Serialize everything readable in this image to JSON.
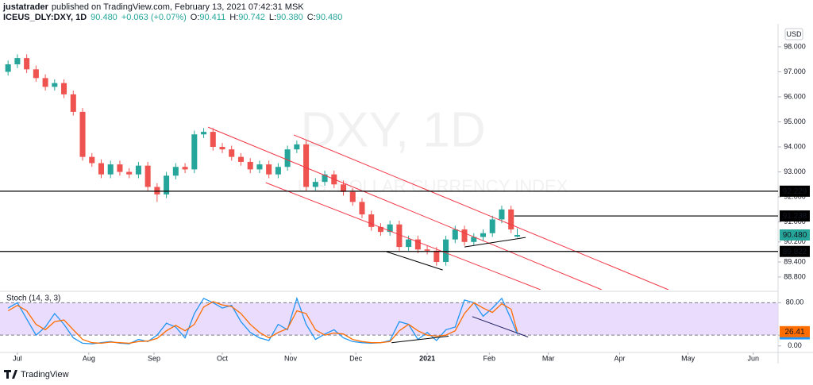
{
  "header": {
    "author": "justatrader",
    "published": "published on TradingView.com, February 13, 2021 07:42:31 MSK",
    "symbol": "ICEUS_DLY:DXY, 1D",
    "price": "90.480",
    "change": "+0.063 (+0.07%)",
    "ohlc": [
      {
        "label": "O:",
        "value": "90.411"
      },
      {
        "label": "H:",
        "value": "90.742"
      },
      {
        "label": "L:",
        "value": "90.380"
      },
      {
        "label": "C:",
        "value": "90.480"
      }
    ]
  },
  "footer": {
    "brand": "TradingView"
  },
  "chart_data": [
    {
      "type": "candlestick",
      "watermark": "DXY, 1D",
      "subtitle": "U.S. DOLLAR CURRENCY INDEX",
      "currency": "USD",
      "up_color": "#26a69a",
      "down_color": "#ef5350",
      "x": [
        -3,
        0,
        3,
        6,
        9,
        12,
        15,
        18,
        21,
        24,
        27,
        30,
        33,
        36,
        39,
        42,
        45,
        48,
        51,
        54,
        57,
        60,
        63,
        66,
        69,
        72,
        75,
        78,
        81,
        84,
        87,
        90,
        93,
        96,
        99,
        102,
        105,
        108,
        111,
        114,
        117,
        120,
        123,
        126,
        129,
        132,
        135,
        138,
        141,
        144,
        147,
        150,
        153,
        156,
        159,
        161
      ],
      "open": [
        97.0,
        97.3,
        97.55,
        97.1,
        96.75,
        96.4,
        96.55,
        96.1,
        95.4,
        93.6,
        93.35,
        92.9,
        93.3,
        93.0,
        92.9,
        93.25,
        92.4,
        92.1,
        92.85,
        93.2,
        93.1,
        94.5,
        94.6,
        94.0,
        93.9,
        93.6,
        93.4,
        93.1,
        93.3,
        92.9,
        93.2,
        93.9,
        94.1,
        92.4,
        92.6,
        92.9,
        92.5,
        92.2,
        91.8,
        91.3,
        90.8,
        90.6,
        90.9,
        90.0,
        90.3,
        89.9,
        89.85,
        89.4,
        90.3,
        90.7,
        90.2,
        90.4,
        90.55,
        91.1,
        91.5,
        90.411
      ],
      "high": [
        97.45,
        97.7,
        97.7,
        97.25,
        96.9,
        96.7,
        96.7,
        96.25,
        95.55,
        93.75,
        93.5,
        93.45,
        93.45,
        93.15,
        93.4,
        93.4,
        92.55,
        93.0,
        93.35,
        93.35,
        94.65,
        94.75,
        94.75,
        94.15,
        94.05,
        93.75,
        93.55,
        93.45,
        93.45,
        93.35,
        94.05,
        94.25,
        94.25,
        92.75,
        93.05,
        93.05,
        92.65,
        92.35,
        91.95,
        91.45,
        90.95,
        91.05,
        91.05,
        90.45,
        90.45,
        90.05,
        90.0,
        90.45,
        90.85,
        90.85,
        90.55,
        90.7,
        91.25,
        91.65,
        91.65,
        90.742
      ],
      "low": [
        96.85,
        97.15,
        96.95,
        96.6,
        96.25,
        96.25,
        95.95,
        95.25,
        93.45,
        93.2,
        92.75,
        92.75,
        92.85,
        92.75,
        92.75,
        92.25,
        91.8,
        91.95,
        92.7,
        92.95,
        92.95,
        94.35,
        93.85,
        93.75,
        93.45,
        93.25,
        92.95,
        92.95,
        92.75,
        92.75,
        93.05,
        93.75,
        92.25,
        92.25,
        92.45,
        92.35,
        92.05,
        91.65,
        91.15,
        90.65,
        90.45,
        90.45,
        89.85,
        89.85,
        89.75,
        89.7,
        89.25,
        89.25,
        90.15,
        90.05,
        90.05,
        90.25,
        90.4,
        90.95,
        90.55,
        90.38
      ],
      "close": [
        97.3,
        97.55,
        97.1,
        96.75,
        96.4,
        96.55,
        96.1,
        95.4,
        93.6,
        93.35,
        92.9,
        93.3,
        93.0,
        92.9,
        93.25,
        92.4,
        92.1,
        92.85,
        93.2,
        93.1,
        94.5,
        94.6,
        94.0,
        93.9,
        93.6,
        93.4,
        93.1,
        93.3,
        92.9,
        93.2,
        93.9,
        94.1,
        92.4,
        92.6,
        92.9,
        92.5,
        92.2,
        91.8,
        91.3,
        90.8,
        90.6,
        90.9,
        90.0,
        90.3,
        89.9,
        89.85,
        89.4,
        90.3,
        90.7,
        90.2,
        90.4,
        90.55,
        91.1,
        91.5,
        90.7,
        90.48
      ],
      "xlim": [
        -5.6,
        245
      ],
      "xticks": [
        {
          "value": 0,
          "label": "Jul"
        },
        {
          "value": 23,
          "label": "Aug"
        },
        {
          "value": 44,
          "label": "Sep"
        },
        {
          "value": 66,
          "label": "Oct"
        },
        {
          "value": 88,
          "label": "Nov"
        },
        {
          "value": 109,
          "label": "Dec"
        },
        {
          "value": 132,
          "label": "2021"
        },
        {
          "value": 152,
          "label": "Feb"
        },
        {
          "value": 171,
          "label": "Mar"
        },
        {
          "value": 194,
          "label": "Apr"
        },
        {
          "value": 216,
          "label": "May"
        },
        {
          "value": 237,
          "label": "Jun"
        }
      ],
      "ylim": [
        88.29,
        98.76
      ],
      "yticks": [
        {
          "value": 98,
          "label": "98.000"
        },
        {
          "value": 97,
          "label": "97.000"
        },
        {
          "value": 96,
          "label": "96.000"
        },
        {
          "value": 95,
          "label": "95.000"
        },
        {
          "value": 94,
          "label": "94.000"
        },
        {
          "value": 93,
          "label": "93.000"
        },
        {
          "value": 92,
          "label": "92.000"
        },
        {
          "value": 91,
          "label": "91.000"
        },
        {
          "value": 90.2,
          "label": "90.200"
        },
        {
          "value": 89.4,
          "label": "89.400"
        },
        {
          "value": 88.8,
          "label": "88.800"
        }
      ],
      "grid": false,
      "hlines": [
        {
          "value": 92.229,
          "color": "#000000"
        },
        {
          "value": 91.238,
          "color": "#000000",
          "x_start": 160
        },
        {
          "value": 89.822,
          "color": "#000000"
        }
      ],
      "price_tag": {
        "value": 90.48,
        "label": "90.480",
        "color": "#26a69a"
      },
      "drawings": [
        {
          "x": [
            61.4,
            188.2
          ],
          "y": [
            94.79,
            88.29
          ],
          "color": "#f23645"
        },
        {
          "x": [
            80.0,
            168.5
          ],
          "y": [
            92.57,
            88.29
          ],
          "color": "#f23645"
        },
        {
          "x": [
            89.0,
            209.7
          ],
          "y": [
            94.48,
            88.29
          ],
          "color": "#f23645"
        },
        {
          "x": [
            118.9,
            137.0
          ],
          "y": [
            89.81,
            89.08
          ],
          "color": "#000000"
        },
        {
          "x": [
            144.0,
            163.7
          ],
          "y": [
            90.0,
            90.38
          ],
          "color": "#000000"
        }
      ]
    },
    {
      "type": "line",
      "title": "Stoch (14, 3, 3)",
      "x": [
        -3,
        0,
        3,
        6,
        9,
        12,
        15,
        18,
        21,
        24,
        27,
        30,
        33,
        36,
        39,
        42,
        45,
        48,
        51,
        54,
        57,
        60,
        63,
        66,
        69,
        72,
        75,
        78,
        81,
        84,
        87,
        90,
        93,
        96,
        99,
        102,
        105,
        108,
        111,
        114,
        117,
        120,
        123,
        126,
        129,
        132,
        135,
        138,
        141,
        144,
        147,
        150,
        153,
        156,
        159,
        161
      ],
      "series": [
        {
          "color": "#2196f3",
          "values": [
            70,
            80,
            50,
            20,
            35,
            60,
            40,
            15,
            5,
            4,
            6,
            8,
            5,
            4,
            12,
            8,
            20,
            42,
            35,
            15,
            60,
            88,
            80,
            70,
            75,
            45,
            25,
            15,
            10,
            40,
            30,
            88,
            40,
            12,
            22,
            30,
            15,
            8,
            6,
            5,
            6,
            10,
            45,
            40,
            12,
            25,
            10,
            30,
            35,
            85,
            80,
            55,
            70,
            88,
            50,
            22.35
          ]
        },
        {
          "color": "#ff6d00",
          "values": [
            65,
            75,
            65,
            40,
            30,
            45,
            48,
            30,
            12,
            6,
            5,
            7,
            6,
            5,
            8,
            9,
            14,
            28,
            38,
            28,
            40,
            72,
            82,
            76,
            73,
            60,
            40,
            25,
            15,
            25,
            32,
            65,
            60,
            30,
            20,
            24,
            22,
            12,
            8,
            6,
            6,
            8,
            28,
            40,
            28,
            20,
            18,
            20,
            28,
            60,
            80,
            70,
            62,
            78,
            68,
            26.41
          ]
        }
      ],
      "band": [
        20,
        80
      ],
      "band_color": "#e1d0fb",
      "xlim": [
        -5.6,
        245
      ],
      "ylim": [
        -10.6,
        99.6
      ],
      "yticks": [
        {
          "value": 80,
          "label": "80.00"
        },
        {
          "value": 20,
          "label": "20.00"
        },
        {
          "value": 0,
          "label": "0.00"
        }
      ],
      "drawings": [
        {
          "x": [
            120.5,
            138.9
          ],
          "y": [
            6.0,
            18.1
          ],
          "color": "#000000"
        },
        {
          "x": [
            146.5,
            164.5
          ],
          "y": [
            54.3,
            16.6
          ],
          "color": "#1a1a5e"
        }
      ]
    }
  ]
}
